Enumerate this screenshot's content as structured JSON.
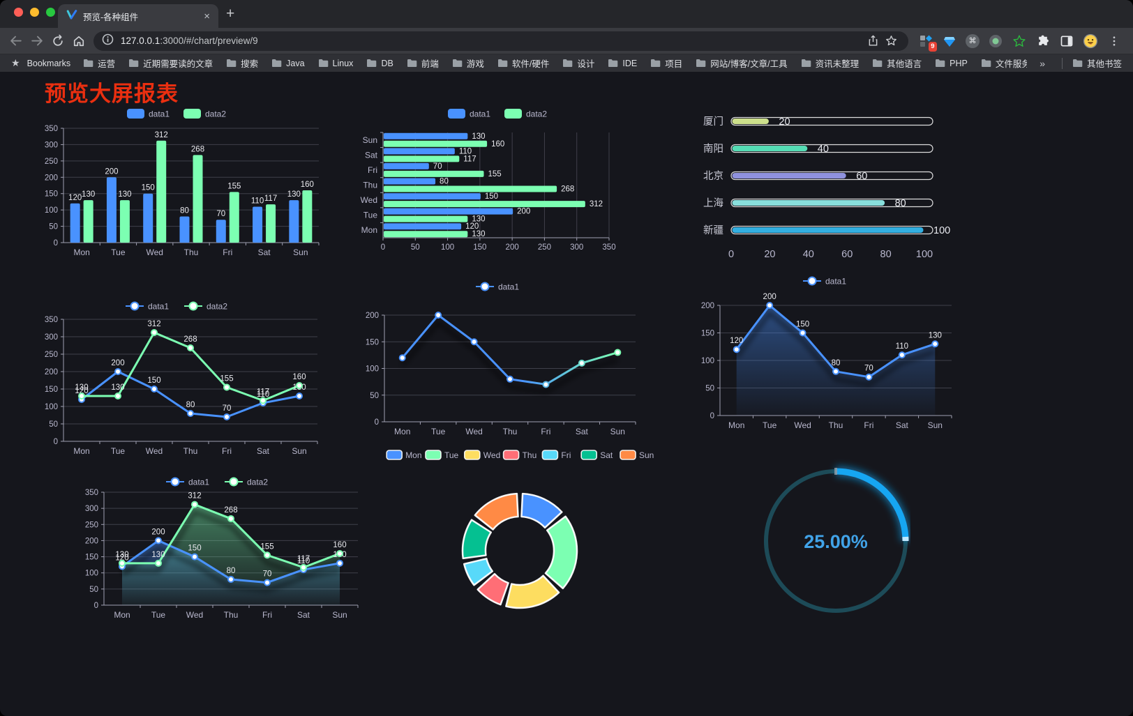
{
  "browser": {
    "tab_title": "预览-各种组件",
    "close_icon": "×",
    "new_tab_icon": "+",
    "url_host": "127.0.0.1",
    "url_rest": ":3000/#/chart/preview/9",
    "extension_badge": "9",
    "bookmarks_label": "Bookmarks",
    "bookmarks": [
      "运营",
      "近期需要读的文章",
      "搜索",
      "Java",
      "Linux",
      "DB",
      "前端",
      "游戏",
      "软件/硬件",
      "设计",
      "IDE",
      "项目",
      "网站/博客/文章/工具",
      "资讯未整理",
      "其他语言",
      "PHP",
      "文件服务器"
    ],
    "bookmarks_overflow": "»",
    "other_bookmarks": "其他书签"
  },
  "page": {
    "title": "预览大屏报表",
    "title_color": "#ea2f10",
    "background": "#15161c"
  },
  "axis_colors": {
    "label": "#b9b8ce",
    "line": "#a0a0b2",
    "grid": "#3f404a",
    "value_label": "#eaeaef"
  },
  "chart_data": [
    {
      "id": "bar-vertical",
      "type": "bar",
      "categories": [
        "Mon",
        "Tue",
        "Wed",
        "Thu",
        "Fri",
        "Sat",
        "Sun"
      ],
      "series": [
        {
          "name": "data1",
          "color": "#4992ff",
          "values": [
            120,
            200,
            150,
            80,
            70,
            110,
            130
          ]
        },
        {
          "name": "data2",
          "color": "#7cffb2",
          "values": [
            130,
            130,
            312,
            268,
            155,
            117,
            160
          ]
        }
      ],
      "ylim": [
        0,
        350
      ],
      "ystep": 50,
      "legend_position": "top"
    },
    {
      "id": "bar-horizontal",
      "type": "bar",
      "orientation": "horizontal",
      "categories": [
        "Mon",
        "Tue",
        "Wed",
        "Thu",
        "Fri",
        "Sat",
        "Sun"
      ],
      "series": [
        {
          "name": "data1",
          "color": "#4992ff",
          "values": [
            120,
            200,
            150,
            80,
            70,
            110,
            130
          ]
        },
        {
          "name": "data2",
          "color": "#7cffb2",
          "values": [
            130,
            130,
            312,
            268,
            155,
            117,
            160
          ]
        }
      ],
      "xlim": [
        0,
        350
      ],
      "xstep": 50,
      "legend_position": "top"
    },
    {
      "id": "progress-bars",
      "type": "bar",
      "orientation": "progress",
      "categories": [
        "厦门",
        "南阳",
        "北京",
        "上海",
        "新疆"
      ],
      "values": [
        20,
        40,
        60,
        80,
        100
      ],
      "colors": [
        "#cde08c",
        "#55dcb4",
        "#8f92de",
        "#88dfdc",
        "#32aee0"
      ],
      "xlim": [
        0,
        100
      ],
      "xstep": 20,
      "track_border": "rgba(255,255,255,0.85)"
    },
    {
      "id": "line-two",
      "type": "line",
      "categories": [
        "Mon",
        "Tue",
        "Wed",
        "Thu",
        "Fri",
        "Sat",
        "Sun"
      ],
      "series": [
        {
          "name": "data1",
          "color": "#4992ff",
          "values": [
            120,
            200,
            150,
            80,
            70,
            110,
            130
          ]
        },
        {
          "name": "data2",
          "color": "#7cffb2",
          "values": [
            130,
            130,
            312,
            268,
            155,
            117,
            160
          ]
        }
      ],
      "ylim": [
        0,
        350
      ],
      "ystep": 50,
      "point_labels": true,
      "legend_position": "top"
    },
    {
      "id": "line-gradient",
      "type": "line",
      "categories": [
        "Mon",
        "Tue",
        "Wed",
        "Thu",
        "Fri",
        "Sat",
        "Sun"
      ],
      "series": [
        {
          "name": "data1",
          "color": "#4992ff",
          "values": [
            120,
            200,
            150,
            80,
            70,
            110,
            130
          ]
        }
      ],
      "gradient_to": "#7cffb2",
      "ylim": [
        0,
        200
      ],
      "ystep": 50,
      "point_labels": false,
      "shadow": true,
      "legend_position": "top"
    },
    {
      "id": "line-area-one",
      "type": "line",
      "categories": [
        "Mon",
        "Tue",
        "Wed",
        "Thu",
        "Fri",
        "Sat",
        "Sun"
      ],
      "series": [
        {
          "name": "data1",
          "color": "#4992ff",
          "values": [
            120,
            200,
            150,
            80,
            70,
            110,
            130
          ],
          "area": true
        }
      ],
      "ylim": [
        0,
        200
      ],
      "ystep": 50,
      "point_labels": true,
      "shadow": true,
      "legend_position": "top"
    },
    {
      "id": "line-area-two",
      "type": "line",
      "categories": [
        "Mon",
        "Tue",
        "Wed",
        "Thu",
        "Fri",
        "Sat",
        "Sun"
      ],
      "series": [
        {
          "name": "data1",
          "color": "#4992ff",
          "values": [
            120,
            200,
            150,
            80,
            70,
            110,
            130
          ],
          "area": true
        },
        {
          "name": "data2",
          "color": "#7cffb2",
          "values": [
            130,
            130,
            312,
            268,
            155,
            117,
            160
          ],
          "area": true
        }
      ],
      "ylim": [
        0,
        350
      ],
      "ystep": 50,
      "point_labels": true,
      "shadow": true,
      "legend_position": "top"
    },
    {
      "id": "pie-days",
      "type": "pie",
      "categories": [
        "Mon",
        "Tue",
        "Wed",
        "Thu",
        "Fri",
        "Sat",
        "Sun"
      ],
      "values": [
        120,
        200,
        150,
        80,
        70,
        110,
        130
      ],
      "colors": [
        "#4992ff",
        "#7cffb2",
        "#fddd60",
        "#ff6e76",
        "#58d9f9",
        "#05c091",
        "#ff8a45"
      ],
      "inner_radius": 49,
      "outer_radius": 82,
      "border_color": "rgba(255,255,255,0.95)",
      "legend_position": "top"
    },
    {
      "id": "gauge-percent",
      "type": "gauge",
      "value": 25,
      "max": 100,
      "label": "25.00%",
      "track_color": "#1d4b58",
      "progress_color": "#16a6f2",
      "tip_color": "#bfe9ff",
      "text_color": "#41a3e8"
    }
  ]
}
